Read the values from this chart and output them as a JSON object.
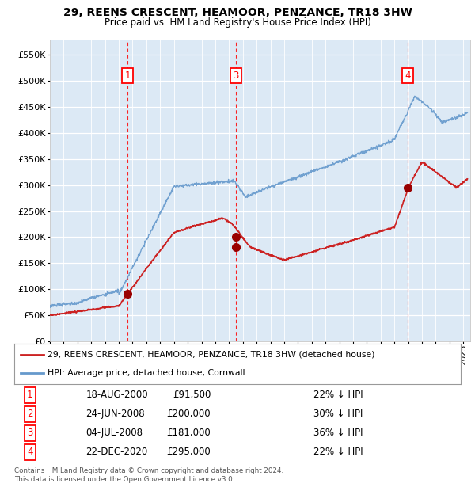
{
  "title": "29, REENS CRESCENT, HEAMOOR, PENZANCE, TR18 3HW",
  "subtitle": "Price paid vs. HM Land Registry's House Price Index (HPI)",
  "ylabel_ticks": [
    0,
    50000,
    100000,
    150000,
    200000,
    250000,
    300000,
    350000,
    400000,
    450000,
    500000,
    550000
  ],
  "ylim": [
    0,
    580000
  ],
  "xlim_start": 1995.0,
  "xlim_end": 2025.5,
  "background_color": "#dce9f5",
  "figure_bg": "#ffffff",
  "grid_color": "#ffffff",
  "hpi_color": "#6699cc",
  "price_color": "#cc2222",
  "sale_marker_color": "#990000",
  "chart_label_boxes": [
    {
      "label": "1",
      "x": 2000.63
    },
    {
      "label": "3",
      "x": 2008.51
    },
    {
      "label": "4",
      "x": 2020.98
    }
  ],
  "transactions": [
    {
      "num": 1,
      "date_x": 2000.63,
      "price": 91500,
      "label": "1"
    },
    {
      "num": 2,
      "date_x": 2008.48,
      "price": 200000,
      "label": "2"
    },
    {
      "num": 3,
      "date_x": 2008.51,
      "price": 181000,
      "label": "3"
    },
    {
      "num": 4,
      "date_x": 2020.98,
      "price": 295000,
      "label": "4"
    }
  ],
  "table_rows": [
    {
      "num": "1",
      "date": "18-AUG-2000",
      "price": "£91,500",
      "pct": "22% ↓ HPI"
    },
    {
      "num": "2",
      "date": "24-JUN-2008",
      "price": "£200,000",
      "pct": "30% ↓ HPI"
    },
    {
      "num": "3",
      "date": "04-JUL-2008",
      "price": "£181,000",
      "pct": "36% ↓ HPI"
    },
    {
      "num": "4",
      "date": "22-DEC-2020",
      "price": "£295,000",
      "pct": "22% ↓ HPI"
    }
  ],
  "footer": "Contains HM Land Registry data © Crown copyright and database right 2024.\nThis data is licensed under the Open Government Licence v3.0.",
  "legend_price_label": "29, REENS CRESCENT, HEAMOOR, PENZANCE, TR18 3HW (detached house)",
  "legend_hpi_label": "HPI: Average price, detached house, Cornwall"
}
